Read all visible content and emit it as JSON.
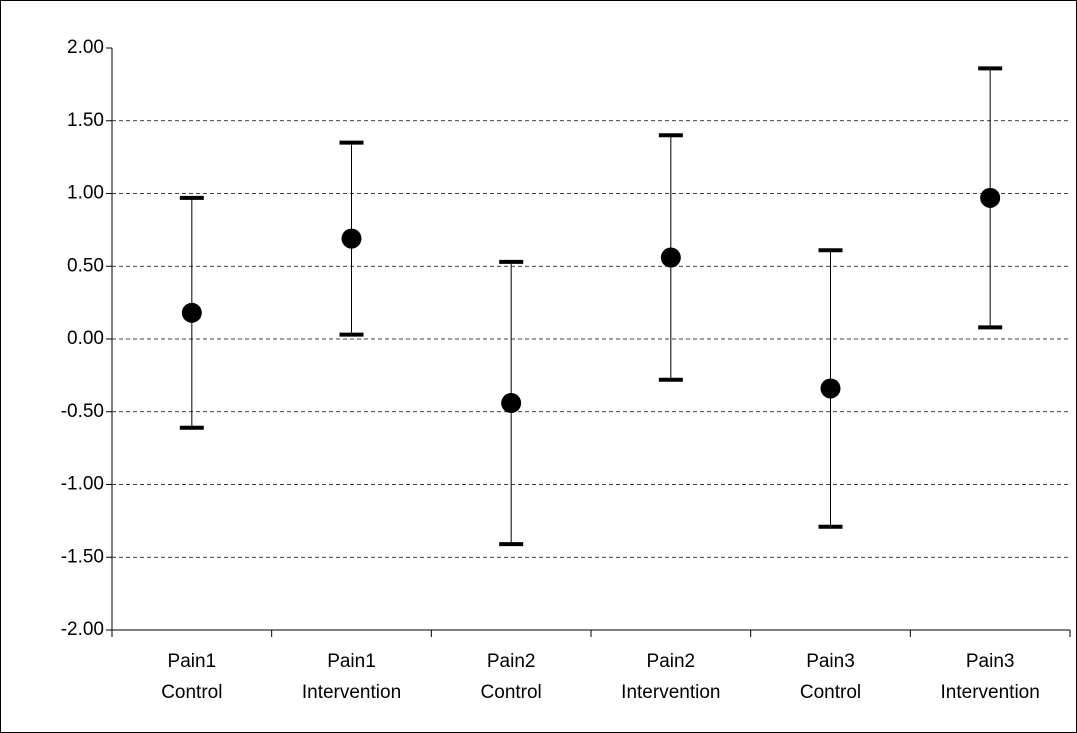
{
  "chart_data": {
    "type": "errorbar",
    "categories": [
      "Pain1 Control",
      "Pain1 Intervention",
      "Pain2 Control",
      "Pain2 Intervention",
      "Pain3 Control",
      "Pain3 Intervention"
    ],
    "values": [
      0.18,
      0.69,
      -0.44,
      0.56,
      -0.34,
      0.97
    ],
    "errors": [
      0.79,
      0.66,
      0.97,
      0.84,
      0.95,
      0.89
    ],
    "color": "#000000",
    "ylim": [
      -2,
      2
    ],
    "yticks": [
      {
        "value": -2,
        "label": "-2.00"
      },
      {
        "value": -1.5,
        "label": "-1.50"
      },
      {
        "value": -1,
        "label": "-1.00"
      },
      {
        "value": -0.5,
        "label": "-0.50"
      },
      {
        "value": 0,
        "label": "0.00"
      },
      {
        "value": 0.5,
        "label": "0.50"
      },
      {
        "value": 1,
        "label": "1.00"
      },
      {
        "value": 1.5,
        "label": "1.50"
      },
      {
        "value": 2,
        "label": "2.00"
      }
    ],
    "grid": true
  }
}
